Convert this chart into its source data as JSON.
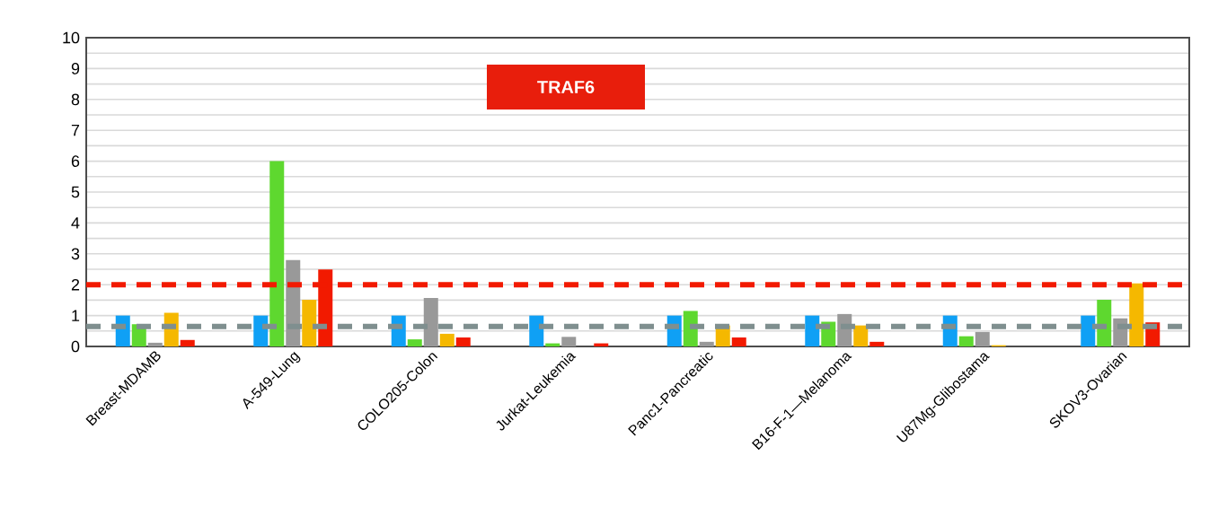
{
  "chart_data": {
    "type": "bar",
    "title": "TRAF6",
    "categories": [
      "Breast-MDAMB",
      "A-549-Lung",
      "COLO205-Colon",
      "Jurkat-Leukemia",
      "Panc1-Pancreatic",
      "B16-F-1—Melanoma",
      "U87Mg-Glibostama",
      "SKOV3-Ovarian"
    ],
    "series": [
      {
        "color": "#0fa0f5",
        "values": [
          1.0,
          1.0,
          1.0,
          1.0,
          1.0,
          1.0,
          1.0,
          1.0
        ]
      },
      {
        "color": "#5ed82f",
        "values": [
          0.72,
          6.0,
          0.23,
          0.1,
          1.15,
          0.8,
          0.33,
          1.51
        ]
      },
      {
        "color": "#999999",
        "values": [
          0.12,
          2.8,
          1.57,
          0.31,
          0.15,
          1.05,
          0.47,
          0.91
        ]
      },
      {
        "color": "#f5b800",
        "values": [
          1.09,
          1.51,
          0.41,
          0,
          0.68,
          0.68,
          0.04,
          2.04
        ]
      },
      {
        "color": "#f21a00",
        "values": [
          0.21,
          2.49,
          0.29,
          0.1,
          0.29,
          0.15,
          0,
          0.78
        ]
      }
    ],
    "ylim": [
      0,
      10
    ],
    "yticks": [
      0,
      1,
      2,
      3,
      4,
      5,
      6,
      7,
      8,
      9,
      10
    ],
    "grid": "y",
    "ref_lines": [
      {
        "axis": "y",
        "value": 2,
        "color": "#f21a00",
        "line_style": "dashed"
      },
      {
        "axis": "y",
        "value": 0.65,
        "color": "#7f8f8f",
        "line_style": "dashed"
      }
    ]
  }
}
